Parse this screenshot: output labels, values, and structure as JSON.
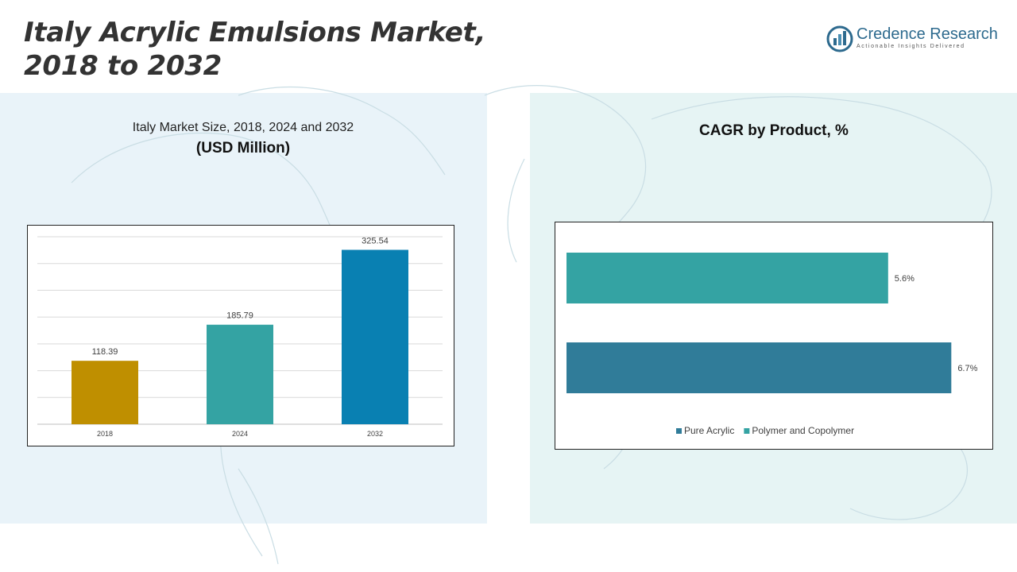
{
  "page": {
    "title_line1": "Italy Acrylic Emulsions Market,",
    "title_line2": "2018 to 2032"
  },
  "logo": {
    "name": "Credence Research",
    "tagline": "Actionable Insights Delivered"
  },
  "colors": {
    "panel_left": "#e9f3f9",
    "panel_right": "#e6f4f4",
    "bar_2018": "#bf8f00",
    "bar_2024": "#34a3a3",
    "bar_2032": "#0980b2",
    "pure_acrylic": "#307c99",
    "polymer_copolymer": "#34a3a3"
  },
  "chart_data": [
    {
      "type": "bar",
      "title": "Italy Market Size, 2018, 2024 and 2032",
      "subtitle": "(USD Million)",
      "categories": [
        "2018",
        "2024",
        "2032"
      ],
      "values": [
        118.39,
        185.79,
        325.54
      ],
      "value_labels": [
        "118.39",
        "185.79",
        "325.54"
      ],
      "bar_colors": [
        "#bf8f00",
        "#34a3a3",
        "#0980b2"
      ],
      "ylim": [
        0,
        350
      ],
      "grid": true,
      "legend": "none"
    },
    {
      "type": "bar",
      "orientation": "horizontal",
      "title": "CAGR by Product, %",
      "categories": [
        "Polymer and Copolymer",
        "Pure Acrylic"
      ],
      "values": [
        5.6,
        6.7
      ],
      "value_labels": [
        "5.6%",
        "6.7%"
      ],
      "bar_colors": [
        "#34a3a3",
        "#307c99"
      ],
      "xlim": [
        0,
        7.0
      ],
      "grid": false,
      "legend": "bottom",
      "legend_entries": [
        {
          "label": "Pure Acrylic",
          "color": "#307c99"
        },
        {
          "label": "Polymer and Copolymer",
          "color": "#34a3a3"
        }
      ]
    }
  ]
}
